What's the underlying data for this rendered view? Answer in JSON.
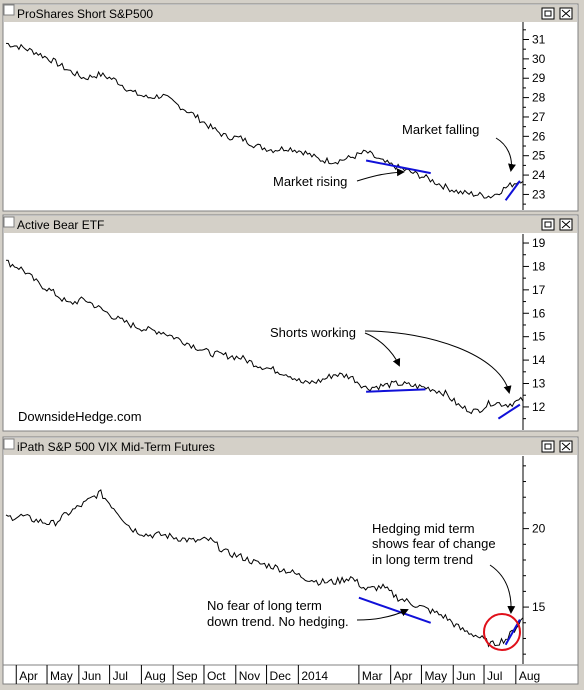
{
  "chart_data": [
    {
      "type": "line",
      "title": "ProShares Short S&P500",
      "y_ticks": [
        23,
        24,
        25,
        26,
        27,
        28,
        29,
        30,
        31
      ],
      "ylim": [
        22.3,
        31.8
      ],
      "grid": false,
      "values": [
        30.8,
        30.6,
        30.3,
        29.9,
        29.4,
        29.0,
        29.2,
        28.9,
        28.3,
        28.0,
        28.1,
        27.6,
        27.1,
        26.5,
        26.0,
        25.9,
        25.5,
        25.3,
        25.4,
        25.2,
        24.8,
        24.7,
        24.9,
        25.2,
        24.7,
        24.4,
        24.1,
        23.8,
        23.4,
        23.1,
        23.0,
        22.9,
        23.4,
        23.8
      ],
      "trendlines": [
        {
          "from": [
            "2014-03-08",
            24.75
          ],
          "to": [
            "2014-05-10",
            24.1
          ]
        },
        {
          "from": [
            "2014-07-22",
            22.7
          ],
          "to": [
            "2014-08-05",
            23.7
          ]
        }
      ],
      "annotations": [
        "Market falling",
        "Market rising"
      ]
    },
    {
      "type": "line",
      "title": "Active Bear ETF",
      "y_ticks": [
        12,
        13,
        14,
        15,
        16,
        17,
        18,
        19
      ],
      "ylim": [
        11.1,
        19.3
      ],
      "grid": false,
      "values": [
        18.2,
        17.9,
        17.3,
        16.9,
        16.4,
        16.6,
        16.2,
        15.8,
        15.5,
        15.3,
        15.2,
        14.9,
        14.6,
        14.3,
        14.2,
        14.1,
        13.8,
        13.6,
        13.4,
        13.0,
        13.1,
        13.4,
        13.3,
        12.8,
        12.9,
        13.0,
        12.9,
        12.8,
        12.6,
        12.0,
        11.8,
        12.2,
        12.1,
        12.3
      ],
      "trendlines": [
        {
          "from": [
            "2014-03-08",
            12.65
          ],
          "to": [
            "2014-05-05",
            12.75
          ]
        },
        {
          "from": [
            "2014-07-15",
            11.5
          ],
          "to": [
            "2014-08-05",
            12.1
          ]
        }
      ],
      "annotations": [
        "Shorts working",
        "DownsideHedge.com"
      ]
    },
    {
      "type": "line",
      "title": "iPath S&P 500 VIX Mid-Term Futures",
      "y_ticks": [
        15,
        20
      ],
      "ylim": [
        11.5,
        24.5
      ],
      "grid": false,
      "values": [
        20.7,
        20.8,
        20.5,
        20.3,
        21.0,
        21.6,
        22.3,
        21.2,
        20.0,
        19.6,
        19.6,
        19.4,
        19.2,
        19.3,
        18.5,
        18.2,
        17.8,
        17.6,
        17.3,
        16.9,
        16.6,
        16.6,
        16.9,
        16.1,
        16.3,
        15.6,
        15.2,
        14.8,
        14.4,
        13.6,
        13.2,
        12.6,
        13.0,
        14.3
      ],
      "trendlines": [
        {
          "from": [
            "2014-03-01",
            15.6
          ],
          "to": [
            "2014-05-10",
            14.0
          ]
        },
        {
          "from": [
            "2014-07-22",
            12.6
          ],
          "to": [
            "2014-08-05",
            14.2
          ]
        }
      ],
      "annotations": [
        "Hedging mid term",
        "shows fear of change",
        "in long term trend",
        "No fear of long term",
        "down trend. No hedging."
      ]
    }
  ],
  "x_axis": {
    "labels": [
      "Apr",
      "May",
      "Jun",
      "Jul",
      "Aug",
      "Sep",
      "Oct",
      "Nov",
      "Dec",
      "2014",
      "Mar",
      "Apr",
      "May",
      "Jun",
      "Jul",
      "Aug"
    ],
    "dates": [
      "2013-04-01",
      "2013-05-01",
      "2013-06-01",
      "2013-07-01",
      "2013-08-01",
      "2013-09-01",
      "2013-10-01",
      "2013-11-01",
      "2013-12-01",
      "2014-01-01",
      "2014-03-01",
      "2014-04-01",
      "2014-05-01",
      "2014-06-01",
      "2014-07-01",
      "2014-08-01"
    ],
    "start": "2013-03-22",
    "end": "2014-08-08"
  },
  "colors": {
    "line": "#000000",
    "trend": "#1010d8",
    "circle": "#e0101a",
    "title_bar": "#d4d0c8",
    "plot_bg": "#ffffff"
  }
}
